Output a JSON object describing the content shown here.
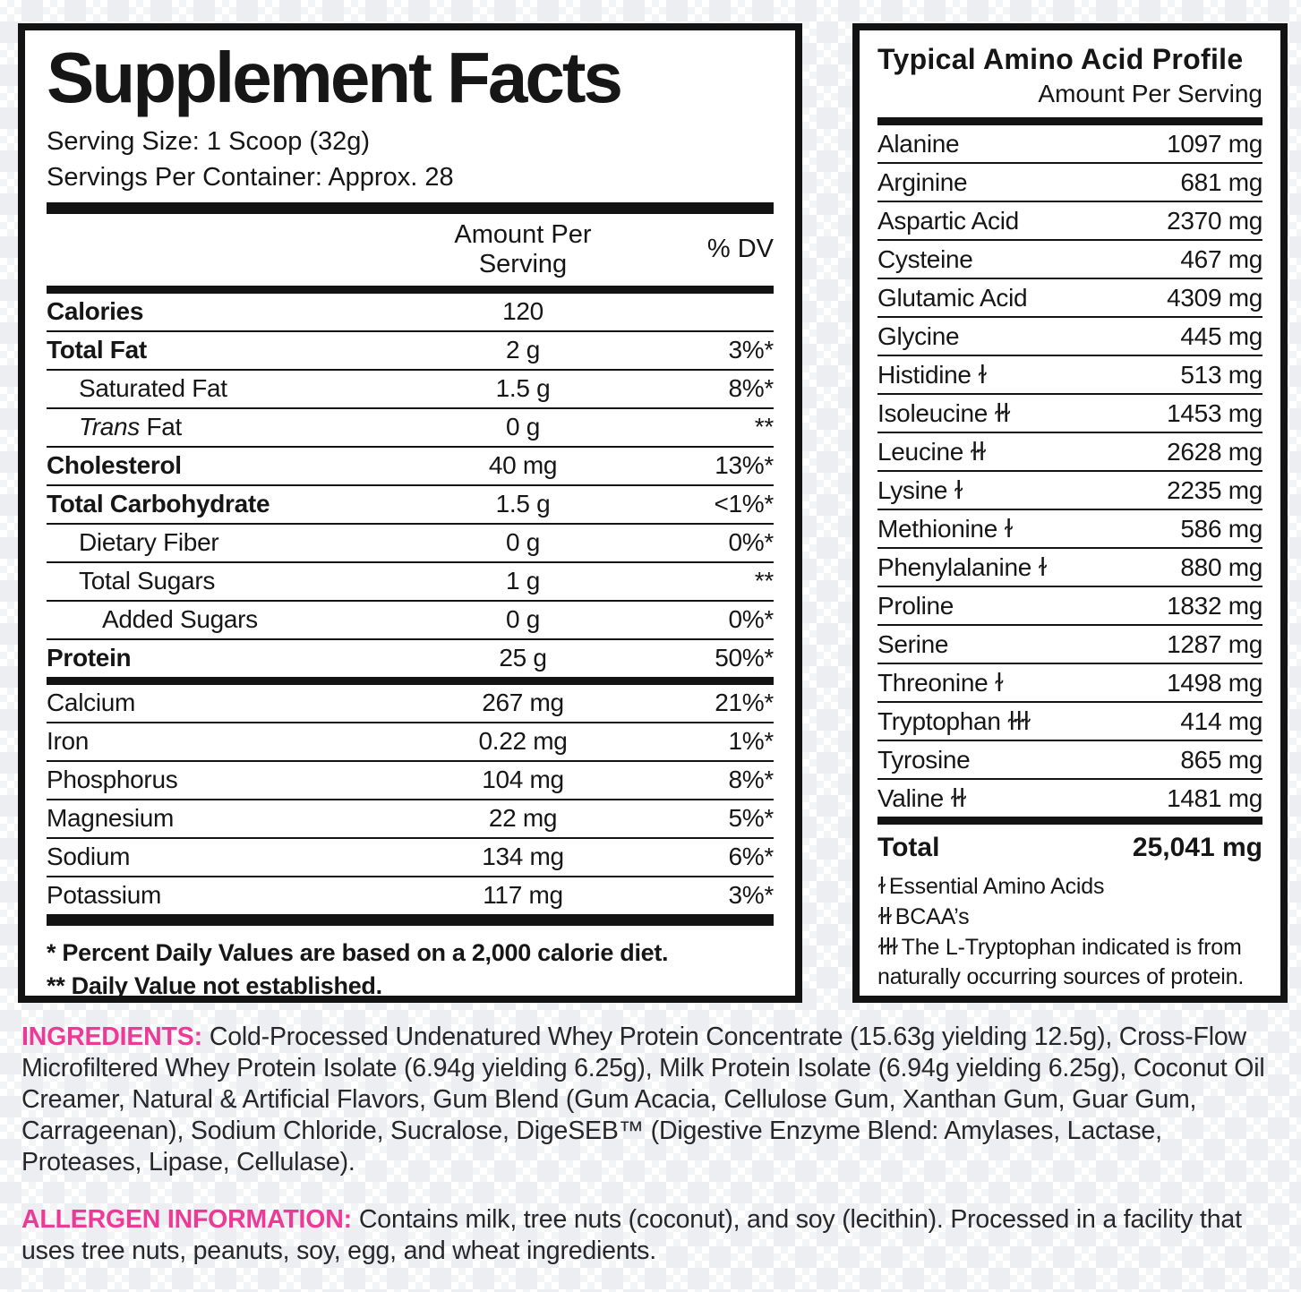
{
  "colors": {
    "accent_pink": "#ee3a97",
    "rule_black": "#131313"
  },
  "supplement_facts": {
    "title": "Supplement Facts",
    "serving_size": "Serving Size: 1 Scoop (32g)",
    "servings_per_container": "Servings Per Container: Approx. 28",
    "col_amount": "Amount Per\nServing",
    "col_dv": "% DV",
    "rows": [
      {
        "label": "Calories",
        "amount": "120",
        "dv": "",
        "bold": true
      },
      {
        "label": "Total Fat",
        "amount": "2 g",
        "dv": "3%*",
        "bold": true
      },
      {
        "label": "Saturated Fat",
        "amount": "1.5 g",
        "dv": "8%*",
        "indent": 1
      },
      {
        "label": "Trans Fat",
        "amount": "0 g",
        "dv": "**",
        "indent": 1,
        "italic_first": true
      },
      {
        "label": "Cholesterol",
        "amount": "40 mg",
        "dv": "13%*",
        "bold": true
      },
      {
        "label": "Total Carbohydrate",
        "amount": "1.5 g",
        "dv": "<1%*",
        "bold": true
      },
      {
        "label": "Dietary Fiber",
        "amount": "0 g",
        "dv": "0%*",
        "indent": 1
      },
      {
        "label": "Total Sugars",
        "amount": "1 g",
        "dv": "**",
        "indent": 1
      },
      {
        "label": "Added Sugars",
        "amount": "0 g",
        "dv": "0%*",
        "indent": 2
      },
      {
        "label": "Protein",
        "amount": "25 g",
        "dv": "50%*",
        "bold": true,
        "divider_after": "medium"
      },
      {
        "label": "Calcium",
        "amount": "267 mg",
        "dv": "21%*"
      },
      {
        "label": "Iron",
        "amount": "0.22 mg",
        "dv": "1%*"
      },
      {
        "label": "Phosphorus",
        "amount": "104 mg",
        "dv": "8%*"
      },
      {
        "label": "Magnesium",
        "amount": "22 mg",
        "dv": "5%*"
      },
      {
        "label": "Sodium",
        "amount": "134 mg",
        "dv": "6%*"
      },
      {
        "label": "Potassium",
        "amount": "117 mg",
        "dv": "3%*",
        "divider_after": "thick"
      }
    ],
    "footnotes": [
      "* Percent Daily Values are based on a 2,000 calorie diet.",
      "** Daily Value not established."
    ]
  },
  "amino_profile": {
    "title": "Typical Amino Acid Profile",
    "col_amount": "Amount Per Serving",
    "rows": [
      {
        "label": "Alanine",
        "amount": "1097 mg"
      },
      {
        "label": "Arginine",
        "amount": "681 mg"
      },
      {
        "label": "Aspartic Acid",
        "amount": "2370 mg"
      },
      {
        "label": "Cysteine",
        "amount": "467 mg"
      },
      {
        "label": "Glutamic Acid",
        "amount": "4309 mg"
      },
      {
        "label": "Glycine",
        "amount": "445 mg"
      },
      {
        "label": "Histidine",
        "marker": "ɫ",
        "amount": "513 mg"
      },
      {
        "label": "Isoleucine",
        "marker": "ɫɫ",
        "amount": "1453 mg"
      },
      {
        "label": "Leucine",
        "marker": "ɫɫ",
        "amount": "2628 mg"
      },
      {
        "label": "Lysine",
        "marker": "ɫ",
        "amount": "2235 mg"
      },
      {
        "label": "Methionine",
        "marker": "ɫ",
        "amount": "586 mg"
      },
      {
        "label": "Phenylalanine",
        "marker": "ɫ",
        "amount": "880 mg"
      },
      {
        "label": "Proline",
        "amount": "1832 mg"
      },
      {
        "label": "Serine",
        "amount": "1287 mg"
      },
      {
        "label": "Threonine",
        "marker": "ɫ",
        "amount": "1498 mg"
      },
      {
        "label": "Tryptophan",
        "marker": "ɫɫɫ",
        "amount": "414 mg"
      },
      {
        "label": "Tyrosine",
        "amount": "865 mg"
      },
      {
        "label": "Valine",
        "marker": "ɫɫ",
        "amount": "1481 mg"
      }
    ],
    "total": {
      "label": "Total",
      "amount": "25,041 mg"
    },
    "legend": [
      {
        "marker": "ɫ",
        "text": "Essential Amino Acids"
      },
      {
        "marker": "ɫɫ",
        "text": "BCAA’s"
      },
      {
        "marker": "ɫɫɫ",
        "text": "The L-Tryptophan indicated is from naturally occurring sources of protein."
      }
    ]
  },
  "ingredients": {
    "heading": "INGREDIENTS:",
    "text": "Cold-Processed Undenatured Whey Protein Concentrate (15.63g yielding 12.5g), Cross-Flow Microfiltered Whey Protein Isolate (6.94g yielding 6.25g), Milk Protein Isolate (6.94g yielding 6.25g), Coconut Oil Creamer, Natural & Artificial Flavors, Gum Blend (Gum Acacia, Cellulose Gum, Xanthan Gum, Guar Gum, Carrageenan), Sodium Chloride, Sucralose, DigeSEB™ (Digestive Enzyme Blend: Amylases, Lactase, Proteases, Lipase, Cellulase)."
  },
  "allergen": {
    "heading": "ALLERGEN INFORMATION:",
    "text": "Contains milk, tree nuts (coconut), and soy (lecithin). Processed in a facility that uses tree nuts, peanuts, soy, egg, and wheat ingredients."
  }
}
